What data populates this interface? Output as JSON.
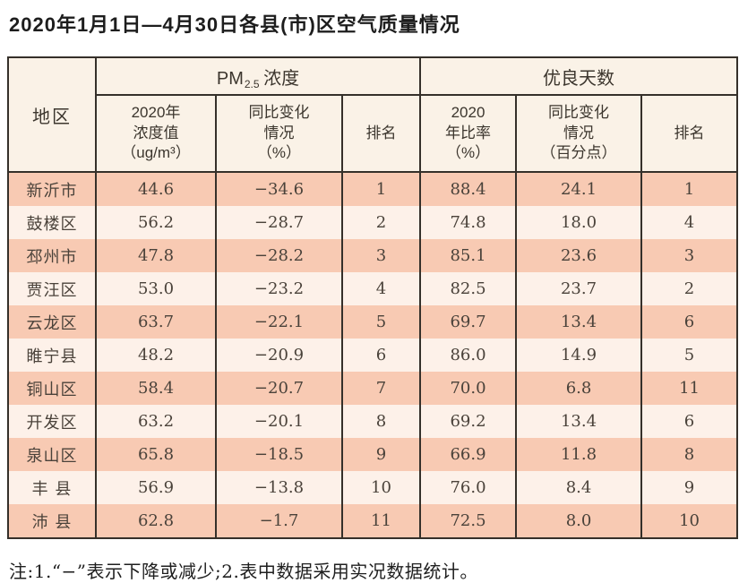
{
  "title": "2020年1月1日—4月30日各县(市)区空气质量情况",
  "table": {
    "region_header": "地区",
    "group_pm": {
      "prefix": "PM",
      "sub": "2.5",
      "suffix": " 浓度"
    },
    "group_days": "优良天数",
    "subheaders": [
      "2020年\n浓度值\n（ug/m³）",
      "同比变化\n情况\n（%）",
      "排名",
      "2020\n年比率\n（%）",
      "同比变化\n情况\n（百分点）",
      "排名"
    ],
    "rows": [
      {
        "region": "新沂市",
        "pm_value": "44.6",
        "pm_change": "−34.6",
        "pm_rank": "1",
        "days_rate": "88.4",
        "days_change": "24.1",
        "days_rank": "1"
      },
      {
        "region": "鼓楼区",
        "pm_value": "56.2",
        "pm_change": "−28.7",
        "pm_rank": "2",
        "days_rate": "74.8",
        "days_change": "18.0",
        "days_rank": "4"
      },
      {
        "region": "邳州市",
        "pm_value": "47.8",
        "pm_change": "−28.2",
        "pm_rank": "3",
        "days_rate": "85.1",
        "days_change": "23.6",
        "days_rank": "3"
      },
      {
        "region": "贾汪区",
        "pm_value": "53.0",
        "pm_change": "−23.2",
        "pm_rank": "4",
        "days_rate": "82.5",
        "days_change": "23.7",
        "days_rank": "2"
      },
      {
        "region": "云龙区",
        "pm_value": "63.7",
        "pm_change": "−22.1",
        "pm_rank": "5",
        "days_rate": "69.7",
        "days_change": "13.4",
        "days_rank": "6"
      },
      {
        "region": "睢宁县",
        "pm_value": "48.2",
        "pm_change": "−20.9",
        "pm_rank": "6",
        "days_rate": "86.0",
        "days_change": "14.9",
        "days_rank": "5"
      },
      {
        "region": "铜山区",
        "pm_value": "58.4",
        "pm_change": "−20.7",
        "pm_rank": "7",
        "days_rate": "70.0",
        "days_change": "6.8",
        "days_rank": "11"
      },
      {
        "region": "开发区",
        "pm_value": "63.2",
        "pm_change": "−20.1",
        "pm_rank": "8",
        "days_rate": "69.2",
        "days_change": "13.4",
        "days_rank": "6"
      },
      {
        "region": "泉山区",
        "pm_value": "65.8",
        "pm_change": "−18.5",
        "pm_rank": "9",
        "days_rate": "66.9",
        "days_change": "11.8",
        "days_rank": "8"
      },
      {
        "region": "丰 县",
        "pm_value": "56.9",
        "pm_change": "−13.8",
        "pm_rank": "10",
        "days_rate": "76.0",
        "days_change": "8.4",
        "days_rank": "9"
      },
      {
        "region": "沛 县",
        "pm_value": "62.8",
        "pm_change": "−1.7",
        "pm_rank": "11",
        "days_rate": "72.5",
        "days_change": "8.0",
        "days_rank": "10"
      }
    ]
  },
  "footnote": "注:1.“−”表示下降或减少;2.表中数据采用实况数据统计。"
}
